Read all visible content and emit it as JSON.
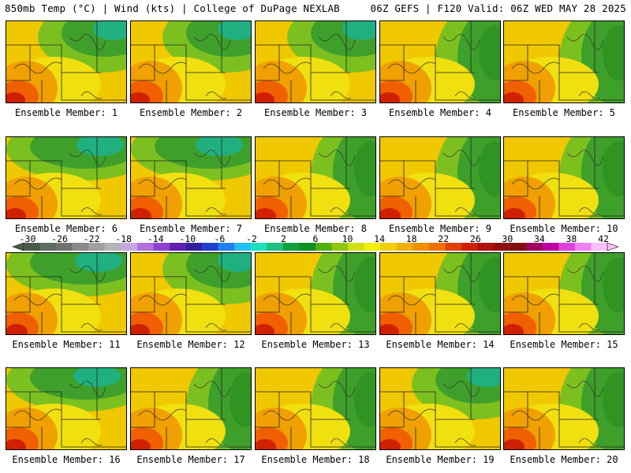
{
  "header": {
    "left": "850mb Temp (°C) | Wind (kts) | College of DuPage NEXLAB",
    "right": "06Z GEFS | F120 Valid: 06Z WED MAY 28 2025"
  },
  "members": [
    {
      "label": "Ensemble Member: 1",
      "pattern": "ne"
    },
    {
      "label": "Ensemble Member: 2",
      "pattern": "ne"
    },
    {
      "label": "Ensemble Member: 3",
      "pattern": "ne"
    },
    {
      "label": "Ensemble Member: 4",
      "pattern": "e"
    },
    {
      "label": "Ensemble Member: 5",
      "pattern": "e"
    },
    {
      "label": "Ensemble Member: 6",
      "pattern": "n"
    },
    {
      "label": "Ensemble Member: 7",
      "pattern": "n"
    },
    {
      "label": "Ensemble Member: 8",
      "pattern": "e"
    },
    {
      "label": "Ensemble Member: 9",
      "pattern": "e"
    },
    {
      "label": "Ensemble Member: 10",
      "pattern": "e"
    },
    {
      "label": "Ensemble Member: 11",
      "pattern": "n"
    },
    {
      "label": "Ensemble Member: 12",
      "pattern": "ne"
    },
    {
      "label": "Ensemble Member: 13",
      "pattern": "e"
    },
    {
      "label": "Ensemble Member: 14",
      "pattern": "e"
    },
    {
      "label": "Ensemble Member: 15",
      "pattern": "e"
    },
    {
      "label": "Ensemble Member: 16",
      "pattern": "n"
    },
    {
      "label": "Ensemble Member: 17",
      "pattern": "e"
    },
    {
      "label": "Ensemble Member: 18",
      "pattern": "e"
    },
    {
      "label": "Ensemble Member: 19",
      "pattern": "ne"
    },
    {
      "label": "Ensemble Member: 20",
      "pattern": "e"
    }
  ],
  "colorbar": {
    "ticks": [
      "-30",
      "-26",
      "-22",
      "-18",
      "-14",
      "-10",
      "-6",
      "-2",
      "2",
      "6",
      "10",
      "14",
      "18",
      "22",
      "26",
      "30",
      "34",
      "38",
      "42"
    ],
    "colors": [
      "#4a5a4a",
      "#5e6e5e",
      "#707070",
      "#8a8a8a",
      "#a0a0a0",
      "#b4b4b4",
      "#c8a8e0",
      "#b070e0",
      "#9040d0",
      "#6020b0",
      "#3020a0",
      "#2040d0",
      "#2080f0",
      "#20c0f0",
      "#20e0c0",
      "#20c080",
      "#10a040",
      "#109020",
      "#50b010",
      "#90c810",
      "#d0e010",
      "#f0f000",
      "#f0d000",
      "#f0b000",
      "#f09000",
      "#f07000",
      "#e04000",
      "#d02000",
      "#b01010",
      "#901010",
      "#801010",
      "#a00060",
      "#c000a0",
      "#e040e0",
      "#f080f0",
      "#f8c0f8"
    ]
  }
}
